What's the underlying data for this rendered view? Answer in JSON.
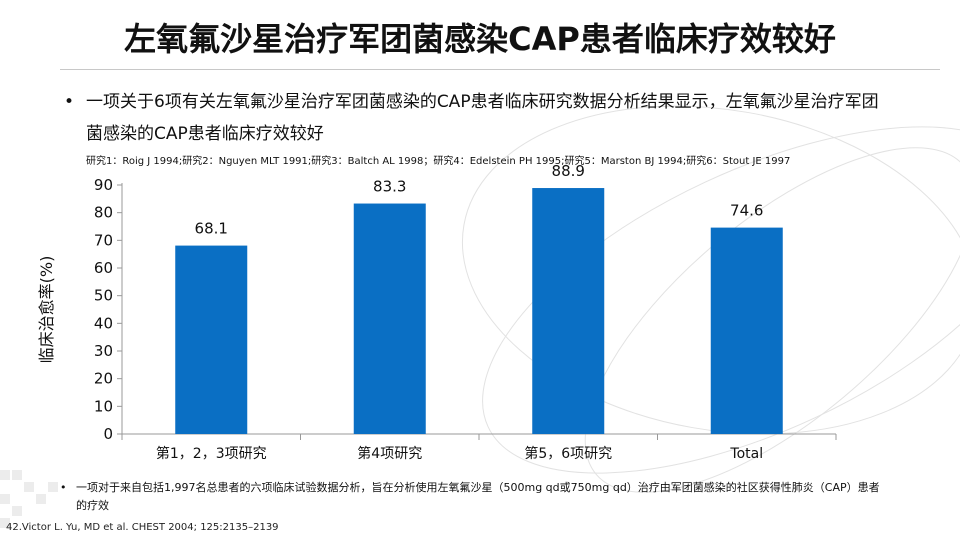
{
  "slide": {
    "title": "左氧氟沙星治疗军团菌感染CAP患者临床疗效较好",
    "bullet_marker": "•",
    "bullet_text": "一项关于6项有关左氧氟沙星治疗军团菌感染的CAP患者临床研究数据分析结果显示，左氧氟沙星治疗军团菌感染的CAP患者临床疗效较好",
    "studies_line": "研究1：Roig J 1994;研究2：Nguyen MLT 1991;研究3：Baltch AL 1998；研究4：Edelstein PH 1995;研究5：Marston BJ 1994;研究6：Stout JE 1997",
    "footnote": "一项对于来自包括1,997名总患者的六项临床试验数据分析，旨在分析使用左氧氟沙星（500mg qd或750mg qd）治疗由军团菌感染的社区获得性肺炎（CAP）患者的疗效",
    "citation": "42.Victor L. Yu, MD et al. CHEST 2004; 125:2135–2139"
  },
  "chart_data": {
    "type": "bar",
    "categories": [
      "第1，2，3项研究",
      "第4项研究",
      "第5，6项研究",
      "Total"
    ],
    "values": [
      68.1,
      83.3,
      88.9,
      74.6
    ],
    "data_labels": [
      "68.1",
      "83.3",
      "88.9",
      "74.6"
    ],
    "title": "",
    "xlabel": "",
    "ylabel": "临床治愈率(%)",
    "ylim": [
      0,
      90
    ],
    "yticks": [
      0,
      10,
      20,
      30,
      40,
      50,
      60,
      70,
      80,
      90
    ],
    "grid": false,
    "bar_color": "#0a6fc4"
  }
}
